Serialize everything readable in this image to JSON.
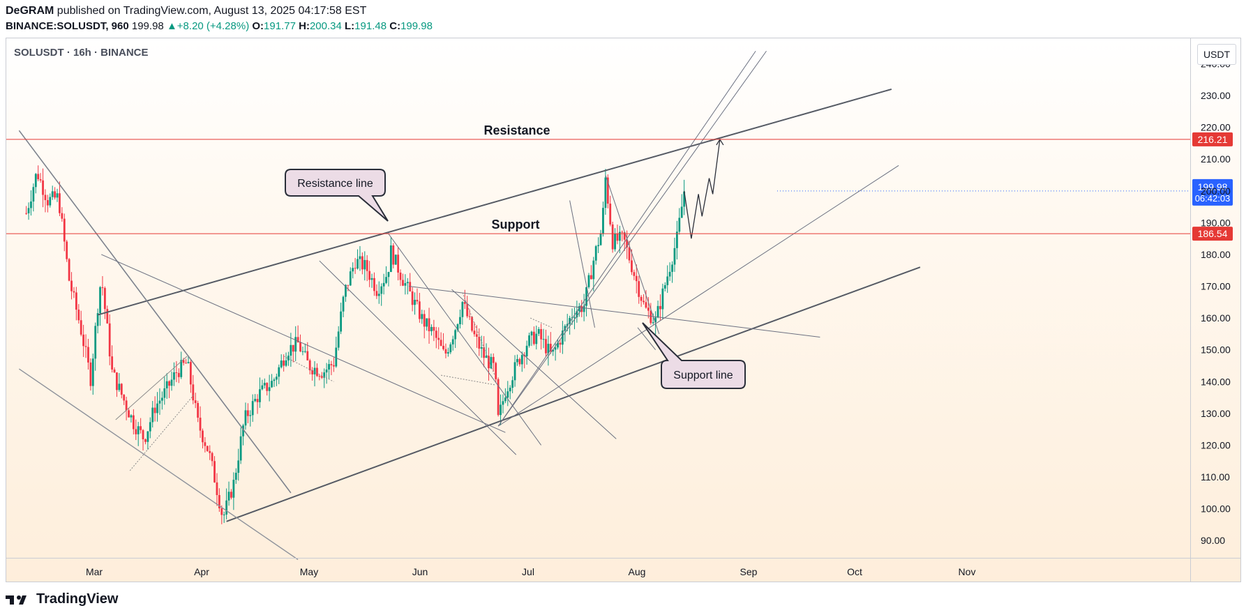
{
  "header": {
    "author": "DeGRAM",
    "published": "published on TradingView.com, August 13, 2025 04:17:58 EST",
    "symbol": "BINANCE:SOLUSDT, 960",
    "last": "199.98",
    "change": "+8.20 (+4.28%)",
    "o_label": "O:",
    "o": "191.77",
    "h_label": "H:",
    "h": "200.34",
    "l_label": "L:",
    "l": "191.48",
    "c_label": "C:",
    "c": "199.98"
  },
  "chart_title": "SOLUSDT · 16h · BINANCE",
  "currency": "USDT",
  "colors": {
    "up": "#089981",
    "down": "#f23645",
    "level_line": "#e53935",
    "current_price_tag": "#2962ff",
    "trend_line": "#555a64"
  },
  "footer": {
    "brand": "TradingView"
  },
  "chart_data": {
    "type": "candlestick",
    "ylim": [
      85,
      248
    ],
    "x_ticks": [
      "Mar",
      "Apr",
      "May",
      "Jun",
      "Jul",
      "Aug",
      "Sep",
      "Oct",
      "Nov"
    ],
    "y_ticks": [
      "240.00",
      "230.00",
      "220.00",
      "210.00",
      "200.00",
      "190.00",
      "180.00",
      "170.00",
      "160.00",
      "150.00",
      "140.00",
      "130.00",
      "120.00",
      "110.00",
      "100.00",
      "90.00"
    ],
    "levels": [
      {
        "text": "216.21",
        "value": 216.21,
        "label": "Resistance"
      },
      {
        "text": "186.54",
        "value": 186.54,
        "label": "Support"
      }
    ],
    "current_price": {
      "text": "199.98",
      "countdown": "06:42:03",
      "value": 199.98
    },
    "callouts": [
      {
        "text": "Resistance line"
      },
      {
        "text": "Support line"
      }
    ],
    "price_path": [
      [
        "Feb 10",
        193
      ],
      [
        "Feb 13",
        206
      ],
      [
        "Feb 16",
        197
      ],
      [
        "Feb 19",
        198
      ],
      [
        "Feb 22",
        172
      ],
      [
        "Feb 25",
        158
      ],
      [
        "Feb 28",
        141
      ],
      [
        "Mar 2",
        164
      ],
      [
        "Mar 3",
        173
      ],
      [
        "Mar 6",
        143
      ],
      [
        "Mar 9",
        135
      ],
      [
        "Mar 12",
        127
      ],
      [
        "Mar 15",
        122
      ],
      [
        "Mar 18",
        132
      ],
      [
        "Mar 21",
        137
      ],
      [
        "Mar 24",
        143
      ],
      [
        "Mar 27",
        146
      ],
      [
        "Mar 30",
        127
      ],
      [
        "Apr 2",
        118
      ],
      [
        "Apr 4",
        108
      ],
      [
        "Apr 6",
        97
      ],
      [
        "Apr 9",
        108
      ],
      [
        "Apr 12",
        128
      ],
      [
        "Apr 16",
        136
      ],
      [
        "Apr 20",
        140
      ],
      [
        "Apr 24",
        150
      ],
      [
        "Apr 27",
        152
      ],
      [
        "Apr 30",
        145
      ],
      [
        "May 4",
        143
      ],
      [
        "May 7",
        146
      ],
      [
        "May 10",
        168
      ],
      [
        "May 13",
        178
      ],
      [
        "May 16",
        176
      ],
      [
        "May 19",
        169
      ],
      [
        "May 22",
        174
      ],
      [
        "May 23",
        181
      ],
      [
        "May 26",
        173
      ],
      [
        "May 29",
        166
      ],
      [
        "Jun 1",
        159
      ],
      [
        "Jun 4",
        155
      ],
      [
        "Jun 7",
        148
      ],
      [
        "Jun 10",
        157
      ],
      [
        "Jun 12",
        165
      ],
      [
        "Jun 15",
        155
      ],
      [
        "Jun 18",
        148
      ],
      [
        "Jun 21",
        144
      ],
      [
        "Jun 22",
        128
      ],
      [
        "Jun 24",
        137
      ],
      [
        "Jun 27",
        145
      ],
      [
        "Jun 30",
        152
      ],
      [
        "Jul 3",
        155
      ],
      [
        "Jul 7",
        148
      ],
      [
        "Jul 10",
        155
      ],
      [
        "Jul 13",
        162
      ],
      [
        "Jul 16",
        164
      ],
      [
        "Jul 19",
        180
      ],
      [
        "Jul 21",
        188
      ],
      [
        "Jul 22",
        204
      ],
      [
        "Jul 24",
        184
      ],
      [
        "Jul 27",
        185
      ],
      [
        "Jul 30",
        174
      ],
      [
        "Aug 2",
        163
      ],
      [
        "Aug 5",
        159
      ],
      [
        "Aug 8",
        172
      ],
      [
        "Aug 11",
        185
      ],
      [
        "Aug 13",
        199.98
      ]
    ],
    "projection": [
      [
        "Aug 13",
        199.98
      ],
      [
        "Aug 15",
        185
      ],
      [
        "Aug 17",
        199
      ],
      [
        "Aug 18",
        192
      ],
      [
        "Aug 20",
        204
      ],
      [
        "Aug 21",
        199
      ],
      [
        "Aug 23",
        216.2
      ]
    ]
  }
}
